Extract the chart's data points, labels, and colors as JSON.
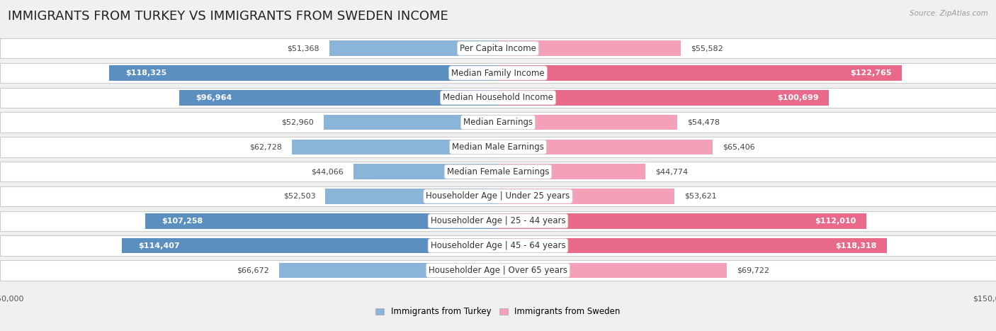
{
  "title": "IMMIGRANTS FROM TURKEY VS IMMIGRANTS FROM SWEDEN INCOME",
  "source": "Source: ZipAtlas.com",
  "categories": [
    "Per Capita Income",
    "Median Family Income",
    "Median Household Income",
    "Median Earnings",
    "Median Male Earnings",
    "Median Female Earnings",
    "Householder Age | Under 25 years",
    "Householder Age | 25 - 44 years",
    "Householder Age | 45 - 64 years",
    "Householder Age | Over 65 years"
  ],
  "turkey_values": [
    51368,
    118325,
    96964,
    52960,
    62728,
    44066,
    52503,
    107258,
    114407,
    66672
  ],
  "sweden_values": [
    55582,
    122765,
    100699,
    54478,
    65406,
    44774,
    53621,
    112010,
    118318,
    69722
  ],
  "turkey_color": "#8ab4d9",
  "sweden_color": "#f4a0b8",
  "turkey_color_strong": "#5b8fc0",
  "sweden_color_strong": "#e8698a",
  "max_value": 150000,
  "turkey_label": "Immigrants from Turkey",
  "sweden_label": "Immigrants from Sweden",
  "background_color": "#f0f0f0",
  "row_bg_color": "#ffffff",
  "title_fontsize": 13,
  "label_fontsize": 8.5,
  "value_fontsize": 8,
  "axis_fontsize": 8,
  "threshold": 75000
}
